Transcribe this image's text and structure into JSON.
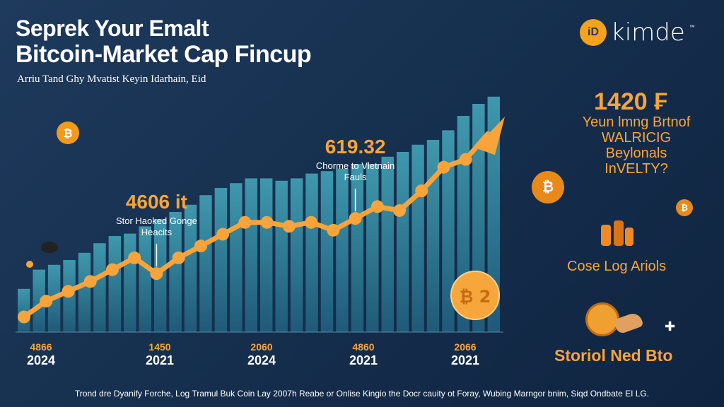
{
  "header": {
    "title_line1": "Seprek Your Emalt",
    "title_line2": "Bitcoin-Market Cap Fincup",
    "subtitle": "Arriu Tand Ghy Mvatist Keyin Idarhain, Eid"
  },
  "brand": {
    "logo_text": "iD",
    "name": "kimde",
    "tm": "™"
  },
  "side_panel": {
    "value": "1420 ₣",
    "lines": [
      "Yeun lmng Brtnof",
      "WALRICIG",
      "Beylonals",
      "InVELTY?"
    ],
    "label1": "Cose Log Ariols",
    "label2": "Storiol Ned Bto"
  },
  "footer": "Trond dre Dyanify Forche, Log Tramul Buk Coin Lay 2007h Reabe or Onlise Kingio the Docr cauity ot Foray, Wubing Marngor bnim, Siqd Ondbate EI LG.",
  "colors": {
    "accent": "#f9a43a",
    "bar": "#2f7f96",
    "background": "#16304f"
  },
  "icons": [
    "bitcoin-coin-icon",
    "trend-arrow-icon",
    "plus-icon"
  ],
  "chart_data": {
    "type": "bar",
    "bars": [
      0.18,
      0.26,
      0.28,
      0.3,
      0.33,
      0.37,
      0.4,
      0.41,
      0.44,
      0.47,
      0.5,
      0.53,
      0.57,
      0.6,
      0.62,
      0.64,
      0.64,
      0.63,
      0.64,
      0.66,
      0.67,
      0.68,
      0.7,
      0.7,
      0.73,
      0.75,
      0.78,
      0.8,
      0.84,
      0.9,
      0.95,
      0.98
    ],
    "line_points": [
      0.12,
      0.2,
      0.25,
      0.3,
      0.36,
      0.42,
      0.34,
      0.42,
      0.48,
      0.54,
      0.6,
      0.6,
      0.58,
      0.6,
      0.56,
      0.62,
      0.68,
      0.66,
      0.76,
      0.88,
      0.92,
      1.05
    ],
    "annotations": [
      {
        "value": "4606 it",
        "text1": "Stor Haoked Gonge",
        "text2": "Heacits",
        "at_point": 6
      },
      {
        "value": "619.32",
        "text1": "Chorme to Vletnain",
        "text2": "Fauls",
        "at_point": 15
      }
    ],
    "x_ticks": [
      {
        "top": "4866",
        "bottom": "2024"
      },
      {
        "top": "1450",
        "bottom": "2021"
      },
      {
        "top": "2060",
        "bottom": "2024"
      },
      {
        "top": "4860",
        "bottom": "2021"
      },
      {
        "top": "2066",
        "bottom": "2021"
      }
    ],
    "coin_marker_label": "₿ 2"
  }
}
